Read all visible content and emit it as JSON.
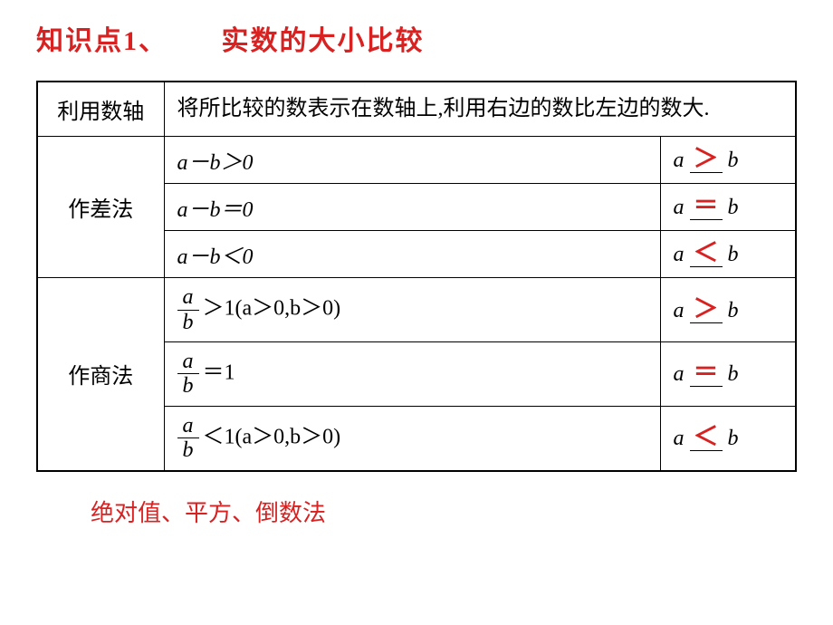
{
  "title": {
    "part1": "知识点1、",
    "part2": "实数的大小比较",
    "color": "#d82222"
  },
  "table": {
    "row1": {
      "method": "利用数轴",
      "description": "将所比较的数表示在数轴上,利用右边的数比左边的数大."
    },
    "row2": {
      "method": "作差法",
      "cond1": "a－b＞0",
      "cond2": "a－b＝0",
      "cond3": "a－b＜0",
      "res1_a": "a",
      "res1_op": "＞",
      "res1_b": "b",
      "res2_a": "a",
      "res2_op": "＝",
      "res2_b": "b",
      "res3_a": "a",
      "res3_op": "＜",
      "res3_b": "b"
    },
    "row3": {
      "method": "作商法",
      "frac_num": "a",
      "frac_den": "b",
      "cond1_suffix": "＞1(a＞0,b＞0)",
      "cond2_suffix": "＝1",
      "cond3_suffix": "＜1(a＞0,b＞0)",
      "res1_a": "a",
      "res1_op": "＞",
      "res1_b": "b",
      "res2_a": "a",
      "res2_op": "＝",
      "res2_b": "b",
      "res3_a": "a",
      "res3_op": "＜",
      "res3_b": "b"
    }
  },
  "footer": "绝对值、平方、倒数法",
  "colors": {
    "answer": "#d82222",
    "border": "#000000",
    "bg": "#ffffff"
  }
}
